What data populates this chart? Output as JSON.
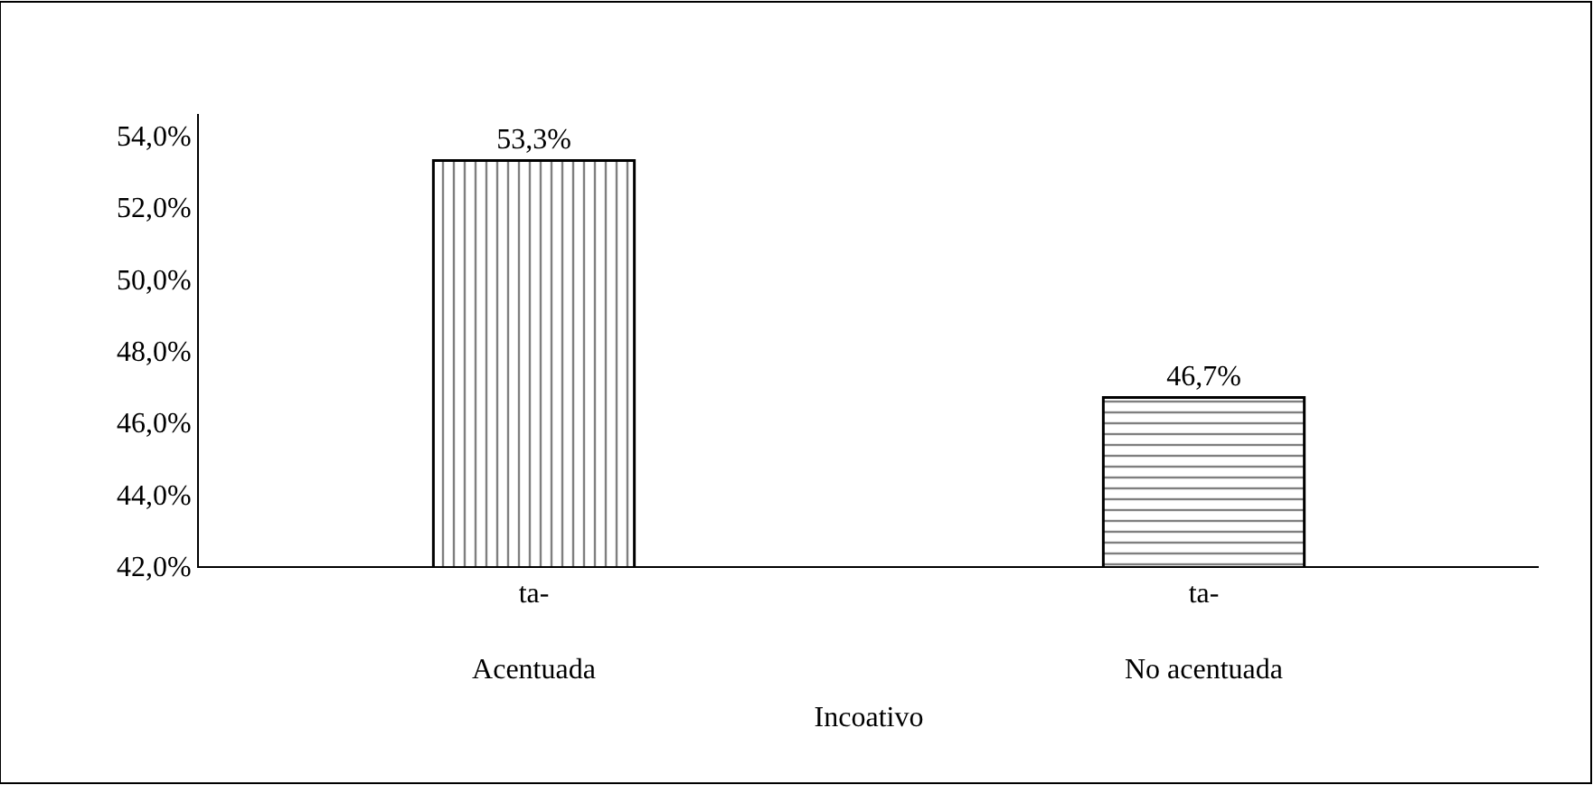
{
  "chart_data": {
    "type": "bar",
    "categories": [
      "ta-\nAcentuada",
      "ta-\nNo acentuada"
    ],
    "xlabel": "Incoativo",
    "values": [
      53.3,
      46.7
    ],
    "colors": [
      "#000000",
      "#000000"
    ],
    "value_labels": [
      "53,3%",
      "46,7%"
    ],
    "ylim": [
      42,
      54.6
    ],
    "yticks": [
      {
        "value": 42,
        "label": "42,0%"
      },
      {
        "value": 44,
        "label": "44,0%"
      },
      {
        "value": 46,
        "label": "46,0%"
      },
      {
        "value": 48,
        "label": "48,0%"
      },
      {
        "value": 50,
        "label": "50,0%"
      },
      {
        "value": 52,
        "label": "52,0%"
      },
      {
        "value": 54,
        "label": "54,0%"
      }
    ],
    "legend": false
  }
}
